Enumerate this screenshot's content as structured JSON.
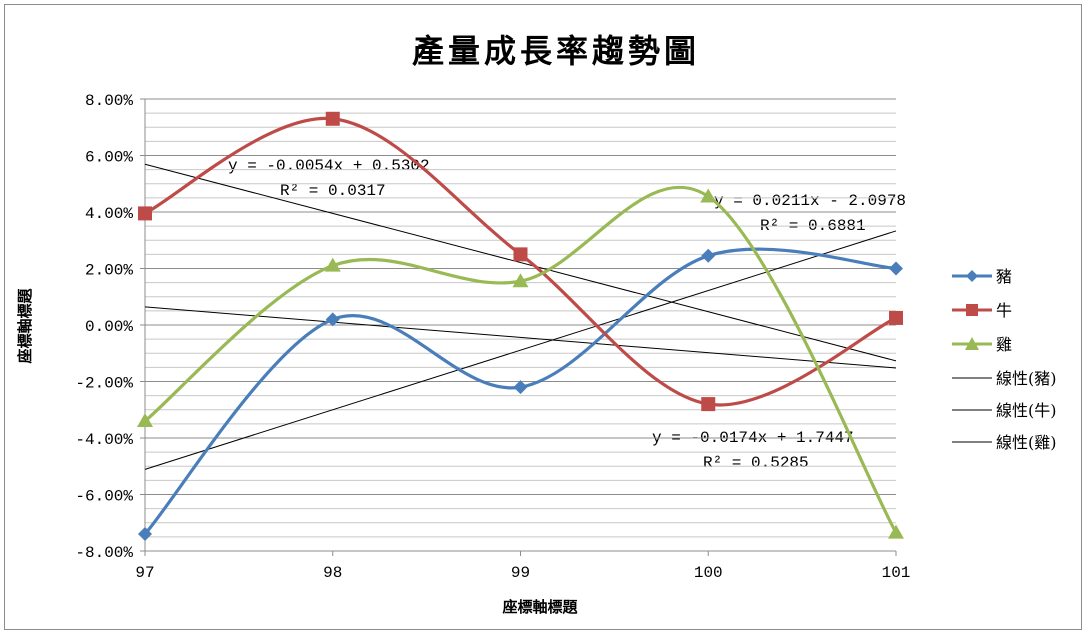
{
  "chart_data": {
    "type": "line",
    "title": "產量成長率趨勢圖",
    "xlabel": "座標軸標題",
    "ylabel": "座標軸標題",
    "categories": [
      "97",
      "98",
      "99",
      "100",
      "101"
    ],
    "x": [
      97,
      98,
      99,
      100,
      101
    ],
    "ylim": [
      -0.08,
      0.08
    ],
    "y_tick_labels": [
      "-8.00%",
      "-6.00%",
      "-4.00%",
      "-2.00%",
      "0.00%",
      "2.00%",
      "4.00%",
      "6.00%",
      "8.00%"
    ],
    "y_ticks": [
      -0.08,
      -0.06,
      -0.04,
      -0.02,
      0.0,
      0.02,
      0.04,
      0.06,
      0.08
    ],
    "grid": true,
    "legend_position": "right",
    "series": [
      {
        "name": "豬",
        "color": "#4a7ebb",
        "marker": "diamond",
        "values": [
          -0.074,
          0.002,
          -0.022,
          0.0245,
          0.02
        ]
      },
      {
        "name": "牛",
        "color": "#be4b48",
        "marker": "square",
        "values": [
          0.0395,
          0.073,
          0.025,
          -0.028,
          0.0025
        ]
      },
      {
        "name": "雞",
        "color": "#98b954",
        "marker": "triangle",
        "values": [
          -0.034,
          0.021,
          0.0155,
          0.0455,
          -0.0735
        ]
      }
    ],
    "trendlines": [
      {
        "name": "線性(豬)",
        "slope": 0.0211,
        "intercept": -2.0978,
        "equation": "y = 0.0211x - 2.0978",
        "r2": "R² = 0.6881"
      },
      {
        "name": "線性(牛)",
        "slope": -0.0174,
        "intercept": 1.7447,
        "equation": "y = -0.0174x + 1.7447",
        "r2": "R² = 0.5285"
      },
      {
        "name": "線性(雞)",
        "slope": -0.0054,
        "intercept": 0.5302,
        "equation": "y = -0.0054x + 0.5302",
        "r2": "R² = 0.0317"
      }
    ]
  }
}
